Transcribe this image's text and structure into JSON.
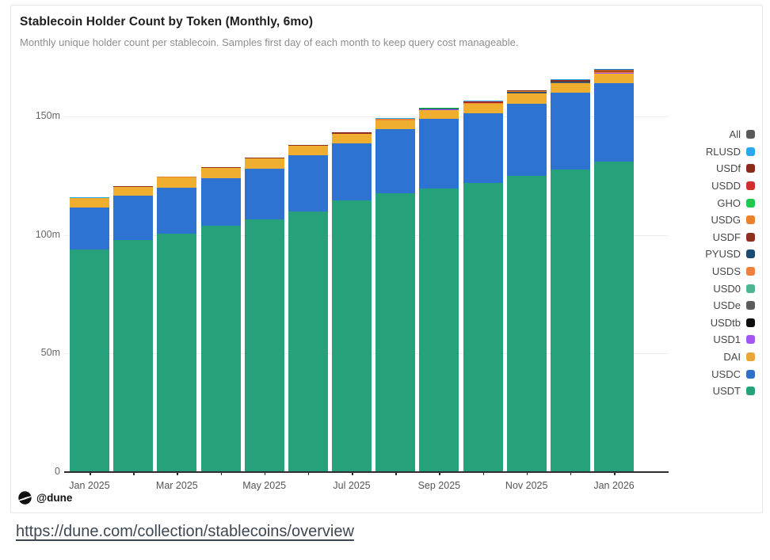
{
  "card": {
    "title": "Stablecoin Holder Count by Token (Monthly, 6mo)",
    "subtitle": "Monthly unique holder count per stablecoin. Samples first day of each month to keep query cost manageable.",
    "watermark": "@dune"
  },
  "footer": {
    "link_text": "https://dune.com/collection/stablecoins/overview"
  },
  "legend": {
    "position": "right",
    "items": [
      {
        "label": "All",
        "color": "#595959"
      },
      {
        "label": "RLUSD",
        "color": "#29a8f0"
      },
      {
        "label": "USDf",
        "color": "#8a2a1a"
      },
      {
        "label": "USDD",
        "color": "#cf2f2f"
      },
      {
        "label": "GHO",
        "color": "#1fc94e"
      },
      {
        "label": "USDG",
        "color": "#e8822d"
      },
      {
        "label": "USDF",
        "color": "#8e301c"
      },
      {
        "label": "PYUSD",
        "color": "#1b4a73"
      },
      {
        "label": "USDS",
        "color": "#ef7f3c"
      },
      {
        "label": "USD0",
        "color": "#4fb591"
      },
      {
        "label": "USDe",
        "color": "#5c5c5c"
      },
      {
        "label": "USDtb",
        "color": "#0d0d0d"
      },
      {
        "label": "USD1",
        "color": "#a456f0"
      },
      {
        "label": "DAI",
        "color": "#e9a73b"
      },
      {
        "label": "USDC",
        "color": "#2d6fc9"
      },
      {
        "label": "USDT",
        "color": "#27a17c"
      }
    ]
  },
  "chart_data": {
    "type": "bar",
    "stacked": true,
    "title": "Stablecoin Holder Count by Token (Monthly, 6mo)",
    "xlabel": "",
    "ylabel": "",
    "unit": "millions of unique holders",
    "ylim": [
      0,
      172
    ],
    "grid": true,
    "categories": [
      "Jan 2025",
      "Feb 2025",
      "Mar 2025",
      "Apr 2025",
      "May 2025",
      "Jun 2025",
      "Jul 2025",
      "Aug 2025",
      "Sep 2025",
      "Oct 2025",
      "Nov 2025",
      "Dec 2025",
      "Jan 2026"
    ],
    "x_tick_labels": [
      "Jan 2025",
      "Mar 2025",
      "May 2025",
      "Jul 2025",
      "Sep 2025",
      "Nov 2025",
      "Jan 2026"
    ],
    "y_ticks": [
      {
        "value": 0,
        "label": "0"
      },
      {
        "value": 50,
        "label": "50m"
      },
      {
        "value": 100,
        "label": "100m"
      },
      {
        "value": 150,
        "label": "150m"
      }
    ],
    "series": [
      {
        "name": "USDT",
        "color": "#27a17c",
        "values": [
          94,
          98,
          100.5,
          104,
          106.5,
          110,
          114.5,
          117.5,
          119.5,
          122,
          125,
          127.5,
          131
        ]
      },
      {
        "name": "USDC",
        "color": "#2e72d2",
        "values": [
          17.5,
          18.5,
          19.5,
          20,
          21.5,
          23.5,
          24,
          27,
          29.5,
          29.5,
          30.5,
          32.5,
          33
        ]
      },
      {
        "name": "DAI",
        "color": "#efae30",
        "values": [
          4,
          3.8,
          4.2,
          4.2,
          4.2,
          4,
          4,
          3.8,
          3.8,
          3.8,
          4.2,
          4,
          4.2
        ]
      },
      {
        "name": "USD1",
        "color": "#a456f0",
        "values": [
          0.02,
          0.02,
          0.03,
          0.03,
          0.04,
          0.05,
          0.06,
          0.07,
          0.08,
          0.09,
          0.11,
          0.13,
          0.15
        ]
      },
      {
        "name": "USDtb",
        "color": "#0d0d0d",
        "values": [
          0.01,
          0.01,
          0.01,
          0.02,
          0.02,
          0.02,
          0.03,
          0.03,
          0.03,
          0.03,
          0.04,
          0.04,
          0.04
        ]
      },
      {
        "name": "USDe",
        "color": "#5c5c5c",
        "values": [
          0.02,
          0.02,
          0.02,
          0.03,
          0.03,
          0.03,
          0.04,
          0.04,
          0.04,
          0.05,
          0.05,
          0.06,
          0.06
        ]
      },
      {
        "name": "USD0",
        "color": "#4fb591",
        "values": [
          0.02,
          0.02,
          0.02,
          0.02,
          0.03,
          0.03,
          0.03,
          0.04,
          0.04,
          0.04,
          0.05,
          0.05,
          0.05
        ]
      },
      {
        "name": "USDS",
        "color": "#ef7f3c",
        "values": [
          0.03,
          0.03,
          0.04,
          0.04,
          0.05,
          0.05,
          0.06,
          0.07,
          0.08,
          0.09,
          0.1,
          0.11,
          0.12
        ]
      },
      {
        "name": "PYUSD",
        "color": "#1b4a73",
        "values": [
          0.05,
          0.05,
          0.06,
          0.07,
          0.08,
          0.09,
          0.1,
          0.12,
          0.14,
          0.16,
          0.19,
          0.22,
          0.25
        ]
      },
      {
        "name": "USDF",
        "color": "#8e301c",
        "values": [
          0.06,
          0.07,
          0.08,
          0.09,
          0.11,
          0.13,
          0.16,
          0.19,
          0.22,
          0.26,
          0.3,
          0.32,
          0.35
        ]
      },
      {
        "name": "USDG",
        "color": "#e8822d",
        "values": [
          0.03,
          0.03,
          0.04,
          0.04,
          0.05,
          0.06,
          0.07,
          0.09,
          0.1,
          0.12,
          0.14,
          0.17,
          0.2
        ]
      },
      {
        "name": "GHO",
        "color": "#1fc94e",
        "values": [
          0.01,
          0.01,
          0.02,
          0.02,
          0.02,
          0.02,
          0.03,
          0.03,
          0.03,
          0.04,
          0.04,
          0.05,
          0.05
        ]
      },
      {
        "name": "USDD",
        "color": "#cf2f2f",
        "values": [
          0.03,
          0.03,
          0.03,
          0.04,
          0.04,
          0.04,
          0.05,
          0.05,
          0.05,
          0.06,
          0.06,
          0.07,
          0.07
        ]
      },
      {
        "name": "USDf",
        "color": "#8a2a1a",
        "values": [
          0.03,
          0.04,
          0.04,
          0.05,
          0.06,
          0.07,
          0.09,
          0.11,
          0.13,
          0.16,
          0.2,
          0.24,
          0.28
        ]
      },
      {
        "name": "RLUSD",
        "color": "#29a8f0",
        "values": [
          0.02,
          0.03,
          0.03,
          0.04,
          0.05,
          0.07,
          0.09,
          0.11,
          0.14,
          0.17,
          0.21,
          0.25,
          0.3
        ]
      }
    ]
  }
}
